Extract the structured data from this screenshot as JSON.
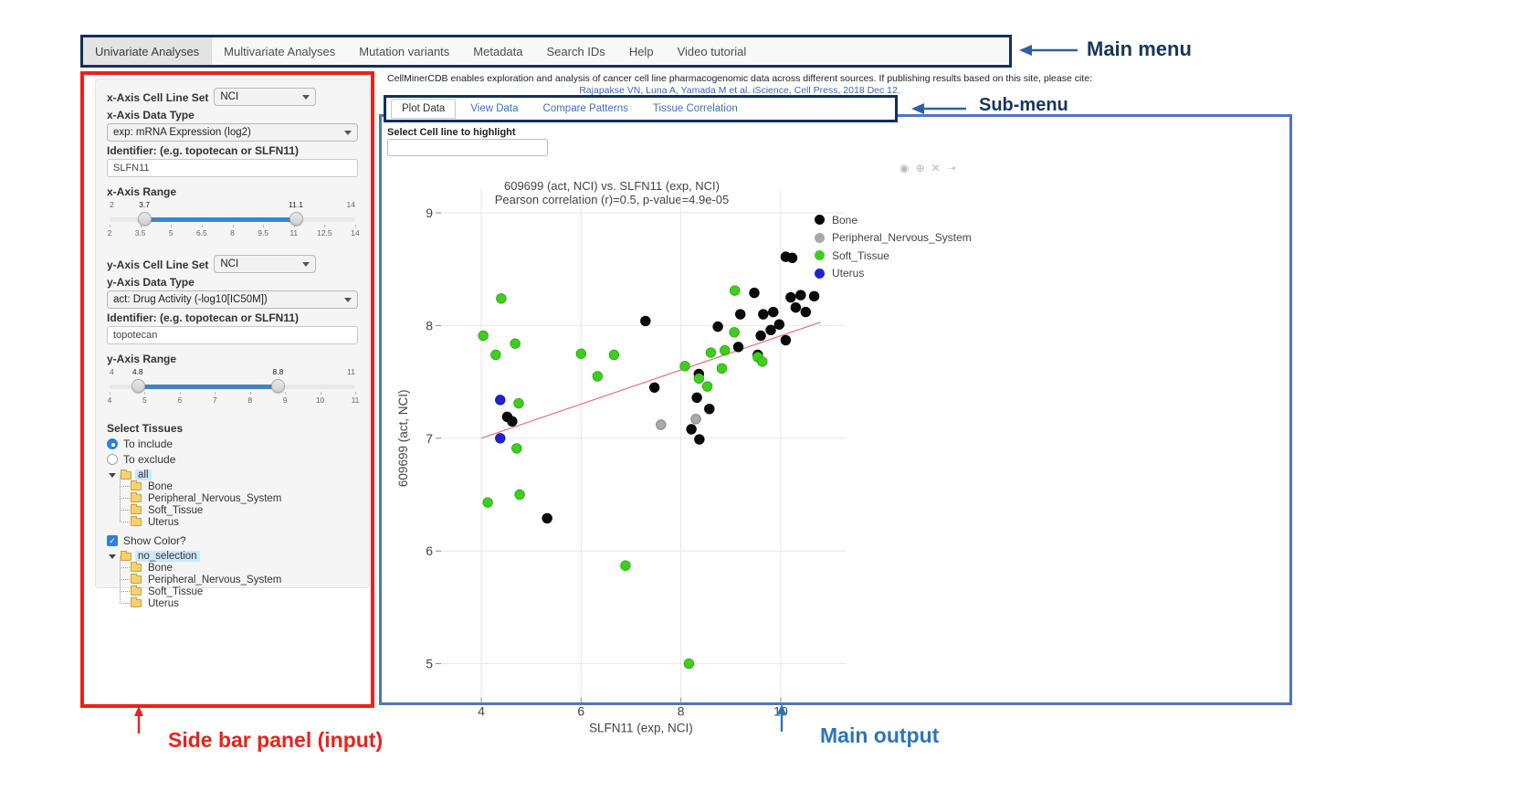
{
  "annotations": {
    "main_menu_label": "Main menu",
    "sub_menu_label": "Sub-menu",
    "sidebar_label": "Side bar panel (input)",
    "main_output_label": "Main output",
    "colors": {
      "navy_box": "#122f5e",
      "navy_label": "#17365d",
      "arrow_blue": "#2e5fa3",
      "red_box": "#e8231c",
      "blue_box": "#4f76bd",
      "red_label": "#e8231c",
      "blue_label": "#2e75b6"
    }
  },
  "main_menu": {
    "items": [
      {
        "label": "Univariate Analyses",
        "active": true
      },
      {
        "label": "Multivariate Analyses",
        "active": false
      },
      {
        "label": "Mutation variants",
        "active": false
      },
      {
        "label": "Metadata",
        "active": false
      },
      {
        "label": "Search IDs",
        "active": false
      },
      {
        "label": "Help",
        "active": false
      },
      {
        "label": "Video tutorial",
        "active": false
      }
    ]
  },
  "citation": {
    "line1": "CellMinerCDB enables exploration and analysis of cancer cell line pharmacogenomic data across different sources. If publishing results based on this site, please cite:",
    "link_text": "Rajapakse VN, Luna A, Yamada M et al. iScience, Cell Press, 2018 Dec 12."
  },
  "sub_menu": {
    "tabs": [
      {
        "label": "Plot Data",
        "active": true
      },
      {
        "label": "View Data",
        "active": false
      },
      {
        "label": "Compare Patterns",
        "active": false
      },
      {
        "label": "Tissue Correlation",
        "active": false
      }
    ]
  },
  "sidebar": {
    "x_axis": {
      "cell_line_set_label": "x-Axis Cell Line Set",
      "cell_line_set_value": "NCI",
      "data_type_label": "x-Axis Data Type",
      "data_type_value": "exp: mRNA Expression (log2)",
      "identifier_label": "Identifier: (e.g. topotecan or SLFN11)",
      "identifier_value": "SLFN11",
      "range_label": "x-Axis Range",
      "range": {
        "min": 2,
        "max": 14,
        "from": 3.7,
        "to": 11.1,
        "ticks": [
          "2",
          "3.5",
          "5",
          "6.5",
          "8",
          "9.5",
          "11",
          "12.5",
          "14"
        ]
      }
    },
    "y_axis": {
      "cell_line_set_label": "y-Axis Cell Line Set",
      "cell_line_set_value": "NCI",
      "data_type_label": "y-Axis Data Type",
      "data_type_value": "act: Drug Activity (-log10[IC50M])",
      "identifier_label": "Identifier: (e.g. topotecan or SLFN11)",
      "identifier_value": "topotecan",
      "range_label": "y-Axis Range",
      "range": {
        "min": 4,
        "max": 11,
        "from": 4.8,
        "to": 8.8,
        "ticks": [
          "4",
          "5",
          "6",
          "7",
          "8",
          "9",
          "10",
          "11"
        ]
      }
    },
    "tissues": {
      "label": "Select Tissues",
      "include_label": "To include",
      "exclude_label": "To exclude",
      "include_selected": true,
      "tree": {
        "root": "all",
        "children": [
          "Bone",
          "Peripheral_Nervous_System",
          "Soft_Tissue",
          "Uterus"
        ]
      },
      "show_color_label": "Show Color?",
      "show_color_checked": true,
      "color_tree": {
        "root": "no_selection",
        "children": [
          "Bone",
          "Peripheral_Nervous_System",
          "Soft_Tissue",
          "Uterus"
        ]
      }
    }
  },
  "main_output": {
    "highlight_label": "Select Cell line to highlight",
    "highlight_value": "",
    "modebar": [
      {
        "name": "camera-icon",
        "glyph": "◉"
      },
      {
        "name": "zoom-in-icon",
        "glyph": "⊕"
      },
      {
        "name": "close-icon",
        "glyph": "✕"
      },
      {
        "name": "pan-icon",
        "glyph": "➝"
      }
    ]
  },
  "chart_data": {
    "type": "scatter",
    "title": "609699 (act, NCI) vs. SLFN11 (exp, NCI)",
    "subtitle": "Pearson correlation (r)=0.5, p-value=4.9e-05",
    "xlabel": "SLFN11 (exp, NCI)",
    "ylabel": "609699 (act, NCI)",
    "xlim": [
      3.2,
      11.3
    ],
    "ylim": [
      4.7,
      9.2
    ],
    "xticks": [
      4,
      6,
      8,
      10
    ],
    "yticks": [
      5,
      6,
      7,
      8,
      9
    ],
    "grid": true,
    "legend_position": "right-top",
    "trend_line": {
      "x1": 4.0,
      "y1": 7.0,
      "x2": 10.8,
      "y2": 8.03,
      "color": "#e87070"
    },
    "series": [
      {
        "name": "Bone",
        "color": "#0a0a0a",
        "stroke": "#000000",
        "points": [
          [
            5.32,
            6.29
          ],
          [
            4.52,
            7.19
          ],
          [
            4.62,
            7.15
          ],
          [
            7.29,
            8.04
          ],
          [
            7.47,
            7.45
          ],
          [
            8.21,
            7.08
          ],
          [
            8.32,
            7.36
          ],
          [
            8.37,
            6.99
          ],
          [
            8.57,
            7.26
          ],
          [
            8.36,
            7.57
          ],
          [
            8.74,
            7.99
          ],
          [
            9.19,
            8.1
          ],
          [
            9.15,
            7.81
          ],
          [
            9.47,
            8.29
          ],
          [
            9.54,
            7.74
          ],
          [
            9.6,
            7.91
          ],
          [
            9.65,
            8.1
          ],
          [
            9.85,
            8.12
          ],
          [
            9.8,
            7.96
          ],
          [
            9.97,
            8.01
          ],
          [
            10.1,
            7.87
          ],
          [
            10.1,
            8.61
          ],
          [
            10.23,
            8.6
          ],
          [
            10.2,
            8.25
          ],
          [
            10.4,
            8.27
          ],
          [
            10.67,
            8.26
          ],
          [
            10.3,
            8.16
          ],
          [
            10.5,
            8.12
          ]
        ]
      },
      {
        "name": "Peripheral_Nervous_System",
        "color": "#a9a9a9",
        "stroke": "#7f7f7f",
        "points": [
          [
            7.6,
            7.12
          ],
          [
            8.3,
            7.17
          ]
        ]
      },
      {
        "name": "Soft_Tissue",
        "color": "#3ecf1e",
        "stroke": "#27a40f",
        "points": [
          [
            4.04,
            7.91
          ],
          [
            4.13,
            6.43
          ],
          [
            4.29,
            7.74
          ],
          [
            4.4,
            8.24
          ],
          [
            4.68,
            7.84
          ],
          [
            4.75,
            7.31
          ],
          [
            4.71,
            6.91
          ],
          [
            4.77,
            6.5
          ],
          [
            6.0,
            7.75
          ],
          [
            6.33,
            7.55
          ],
          [
            6.66,
            7.74
          ],
          [
            6.89,
            5.87
          ],
          [
            8.08,
            7.64
          ],
          [
            8.16,
            5.0
          ],
          [
            8.36,
            7.53
          ],
          [
            8.53,
            7.46
          ],
          [
            8.6,
            7.76
          ],
          [
            8.82,
            7.62
          ],
          [
            8.88,
            7.78
          ],
          [
            9.07,
            7.94
          ],
          [
            9.08,
            8.31
          ],
          [
            9.54,
            7.72
          ],
          [
            9.63,
            7.68
          ]
        ]
      },
      {
        "name": "Uterus",
        "color": "#2222cd",
        "stroke": "#1515a8",
        "points": [
          [
            4.38,
            7.34
          ],
          [
            4.38,
            7.0
          ]
        ]
      }
    ]
  }
}
